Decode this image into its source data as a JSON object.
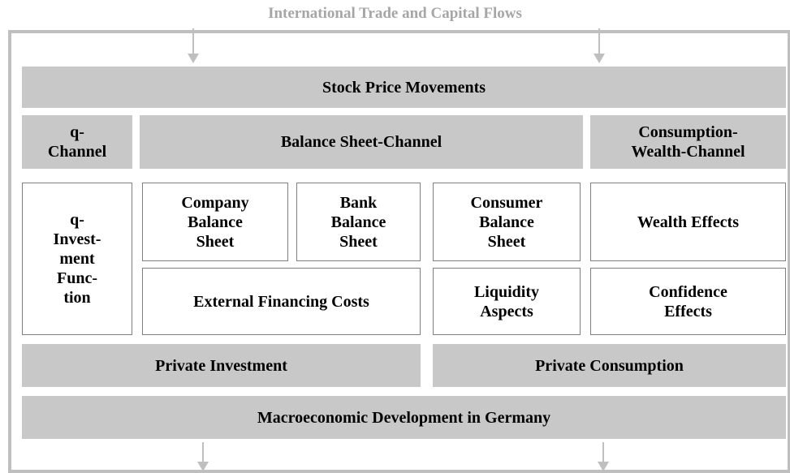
{
  "title": "International Trade and Capital Flows",
  "boxes": [
    {
      "lines": [
        "Stock Price Movements"
      ]
    },
    {
      "lines": [
        "q-",
        "Channel"
      ]
    },
    {
      "lines": [
        "Balance Sheet-Channel"
      ]
    },
    {
      "lines": [
        "Consumption-",
        "Wealth-Channel"
      ]
    },
    {
      "lines": [
        "q-",
        "Invest-",
        "ment",
        "Func-",
        "tion"
      ]
    },
    {
      "lines": [
        "Company",
        "Balance",
        "Sheet"
      ]
    },
    {
      "lines": [
        "Bank",
        "Balance",
        "Sheet"
      ]
    },
    {
      "lines": [
        "Consumer",
        "Balance",
        "Sheet"
      ]
    },
    {
      "lines": [
        "Wealth Effects"
      ]
    },
    {
      "lines": [
        "External Financing Costs"
      ]
    },
    {
      "lines": [
        "Liquidity",
        "Aspects"
      ]
    },
    {
      "lines": [
        "Confidence",
        "Effects"
      ]
    },
    {
      "lines": [
        "Private Investment"
      ]
    },
    {
      "lines": [
        "Private Consumption"
      ]
    },
    {
      "lines": [
        "Macroeconomic Development in Germany"
      ]
    }
  ]
}
